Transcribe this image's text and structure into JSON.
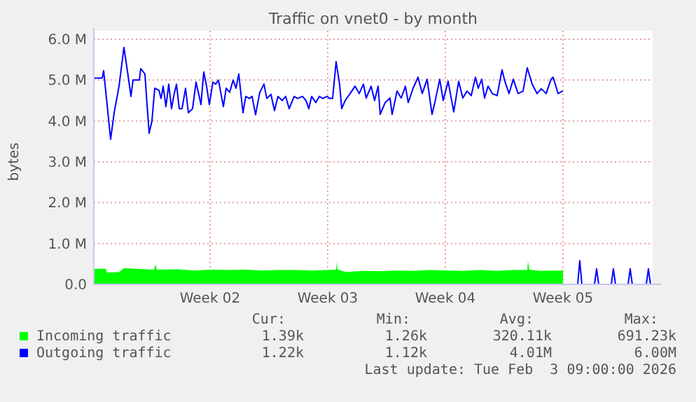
{
  "chart_data": {
    "type": "area",
    "title": "Traffic on vnet0 - by month",
    "ylabel": "bytes",
    "xlim": [
      "2026-01-01T12:00",
      "2026-02-03T18:00"
    ],
    "xticks": [
      {
        "value": "2026-01-08T10:00",
        "label": "Week 02"
      },
      {
        "value": "2026-01-15T10:00",
        "label": "Week 03"
      },
      {
        "value": "2026-01-22T10:00",
        "label": "Week 04"
      },
      {
        "value": "2026-01-29T10:00",
        "label": "Week 05"
      }
    ],
    "ylim": [
      0,
      6
    ],
    "yticks": [
      {
        "value": 0,
        "label": "0.0"
      },
      {
        "value": 1,
        "label": "1.0 M"
      },
      {
        "value": 2,
        "label": "2.0 M"
      },
      {
        "value": 3,
        "label": "3.0 M"
      },
      {
        "value": 4,
        "label": "4.0 M"
      },
      {
        "value": 5,
        "label": "5.0 M"
      },
      {
        "value": 6,
        "label": "6.0 M"
      }
    ],
    "grid": true,
    "legend": "bottom",
    "series": [
      {
        "name": "Incoming traffic",
        "type": "area",
        "color": "#00ff00",
        "x": [
          "2026-01-01T12:00",
          "2026-01-02T05:00",
          "2026-01-02T07:00",
          "2026-01-03T00:00",
          "2026-01-03T07:00",
          "2026-01-04T00:00",
          "2026-01-05T02:00",
          "2026-01-05T04:00",
          "2026-01-05T06:00",
          "2026-01-06T12:00",
          "2026-01-07T12:00",
          "2026-01-08T12:00",
          "2026-01-09T12:00",
          "2026-01-10T12:00",
          "2026-01-11T12:00",
          "2026-01-12T12:00",
          "2026-01-13T12:00",
          "2026-01-14T12:00",
          "2026-01-15T12:00",
          "2026-01-15T22:00",
          "2026-01-15T23:00",
          "2026-01-16T00:00",
          "2026-01-16T12:00",
          "2026-01-17T12:00",
          "2026-01-18T12:00",
          "2026-01-19T12:00",
          "2026-01-20T12:00",
          "2026-01-21T12:00",
          "2026-01-22T12:00",
          "2026-01-23T12:00",
          "2026-01-24T12:00",
          "2026-01-25T12:00",
          "2026-01-26T12:00",
          "2026-01-27T07:00",
          "2026-01-27T08:00",
          "2026-01-27T10:00",
          "2026-01-28T00:00",
          "2026-01-29T10:00"
        ],
        "values": [
          0.38,
          0.38,
          0.29,
          0.3,
          0.4,
          0.38,
          0.36,
          0.49,
          0.36,
          0.37,
          0.34,
          0.36,
          0.35,
          0.36,
          0.34,
          0.35,
          0.35,
          0.34,
          0.35,
          0.36,
          0.55,
          0.37,
          0.3,
          0.33,
          0.32,
          0.34,
          0.33,
          0.35,
          0.34,
          0.33,
          0.35,
          0.33,
          0.35,
          0.35,
          0.56,
          0.36,
          0.33,
          0.34
        ]
      },
      {
        "name": "Outgoing traffic",
        "type": "line",
        "color": "#0000ff",
        "x": [
          "2026-01-01T12:00",
          "2026-01-02T00:00",
          "2026-01-02T02:00",
          "2026-01-02T12:00",
          "2026-01-02T17:00",
          "2026-01-03T00:00",
          "2026-01-03T07:00",
          "2026-01-03T13:00",
          "2026-01-03T17:00",
          "2026-01-03T20:00",
          "2026-01-04T05:00",
          "2026-01-04T07:00",
          "2026-01-04T13:00",
          "2026-01-04T16:00",
          "2026-01-04T19:00",
          "2026-01-04T23:00",
          "2026-01-05T03:00",
          "2026-01-05T09:00",
          "2026-01-05T12:00",
          "2026-01-05T15:00",
          "2026-01-05T19:00",
          "2026-01-05T23:00",
          "2026-01-06T03:00",
          "2026-01-06T06:00",
          "2026-01-06T10:00",
          "2026-01-06T14:00",
          "2026-01-06T18:00",
          "2026-01-06T23:00",
          "2026-01-07T03:00",
          "2026-01-07T09:00",
          "2026-01-07T14:00",
          "2026-01-07T21:00",
          "2026-01-08T01:00",
          "2026-01-08T05:00",
          "2026-01-08T09:00",
          "2026-01-08T14:00",
          "2026-01-08T18:00",
          "2026-01-08T22:00",
          "2026-01-09T05:00",
          "2026-01-09T09:00",
          "2026-01-09T14:00",
          "2026-01-09T19:00",
          "2026-01-09T23:00",
          "2026-01-10T03:00",
          "2026-01-10T09:00",
          "2026-01-10T13:00",
          "2026-01-10T18:00",
          "2026-01-10T22:00",
          "2026-01-11T03:00",
          "2026-01-11T09:00",
          "2026-01-11T15:00",
          "2026-01-11T19:00",
          "2026-01-12T01:00",
          "2026-01-12T06:00",
          "2026-01-12T11:00",
          "2026-01-12T17:00",
          "2026-01-12T22:00",
          "2026-01-13T03:00",
          "2026-01-13T10:00",
          "2026-01-13T15:00",
          "2026-01-13T22:00",
          "2026-01-14T03:00",
          "2026-01-14T07:00",
          "2026-01-14T11:00",
          "2026-01-14T17:00",
          "2026-01-14T22:00",
          "2026-01-15T03:00",
          "2026-01-15T09:00",
          "2026-01-15T13:00",
          "2026-01-15T17:00",
          "2026-01-15T22:00",
          "2026-01-16T03:00",
          "2026-01-16T06:00",
          "2026-01-16T11:00",
          "2026-01-16T18:00",
          "2026-01-17T01:00",
          "2026-01-17T07:00",
          "2026-01-17T13:00",
          "2026-01-17T17:00",
          "2026-01-18T00:00",
          "2026-01-18T05:00",
          "2026-01-18T10:00",
          "2026-01-18T13:00",
          "2026-01-18T20:00",
          "2026-01-19T03:00",
          "2026-01-19T06:00",
          "2026-01-19T13:00",
          "2026-01-19T19:00",
          "2026-01-20T01:00",
          "2026-01-20T05:00",
          "2026-01-20T12:00",
          "2026-01-20T19:00",
          "2026-01-21T01:00",
          "2026-01-21T08:00",
          "2026-01-21T15:00",
          "2026-01-21T19:00",
          "2026-01-22T02:00",
          "2026-01-22T07:00",
          "2026-01-22T14:00",
          "2026-01-22T22:00",
          "2026-01-23T05:00",
          "2026-01-23T11:00",
          "2026-01-23T17:00",
          "2026-01-23T23:00",
          "2026-01-24T05:00",
          "2026-01-24T09:00",
          "2026-01-24T14:00",
          "2026-01-24T18:00",
          "2026-01-24T23:00",
          "2026-01-25T05:00",
          "2026-01-25T12:00",
          "2026-01-25T19:00",
          "2026-01-25T23:00",
          "2026-01-26T05:00",
          "2026-01-26T11:00",
          "2026-01-26T18:00",
          "2026-01-27T01:00",
          "2026-01-27T07:00",
          "2026-01-27T14:00",
          "2026-01-27T21:00",
          "2026-01-28T03:00",
          "2026-01-28T10:00",
          "2026-01-28T17:00",
          "2026-01-28T20:00",
          "2026-01-29T03:00",
          "2026-01-29T09:00",
          "2026-01-29T17:00",
          "2026-01-30T00:00",
          "2026-01-30T07:00",
          "2026-01-30T10:00",
          "2026-01-30T13:00",
          "2026-01-31T07:00",
          "2026-01-31T10:00",
          "2026-01-31T13:00",
          "2026-02-01T07:00",
          "2026-02-01T10:00",
          "2026-02-01T13:00",
          "2026-02-02T07:00",
          "2026-02-02T10:00",
          "2026-02-02T13:00",
          "2026-02-03T09:00",
          "2026-02-03T12:00",
          "2026-02-03T15:00"
        ],
        "values": [
          5.05,
          5.05,
          5.23,
          3.55,
          4.2,
          4.85,
          5.8,
          5.1,
          4.6,
          5.0,
          5.0,
          5.28,
          5.15,
          4.4,
          3.7,
          4.0,
          4.8,
          4.75,
          4.55,
          4.85,
          4.35,
          4.9,
          4.3,
          4.6,
          4.9,
          4.3,
          4.3,
          4.8,
          4.2,
          4.3,
          4.95,
          4.4,
          5.2,
          4.85,
          4.4,
          4.95,
          4.9,
          5.0,
          4.35,
          4.8,
          4.7,
          5.0,
          4.8,
          5.15,
          4.2,
          4.6,
          4.55,
          4.6,
          4.15,
          4.7,
          4.9,
          4.55,
          4.65,
          4.25,
          4.6,
          4.5,
          4.6,
          4.3,
          4.6,
          4.55,
          4.6,
          4.5,
          4.3,
          4.6,
          4.45,
          4.6,
          4.55,
          4.6,
          4.55,
          4.55,
          5.45,
          4.9,
          4.3,
          4.5,
          4.67,
          4.85,
          4.67,
          4.9,
          4.56,
          4.85,
          4.5,
          4.85,
          4.16,
          4.45,
          4.56,
          4.16,
          4.73,
          4.56,
          4.85,
          4.45,
          4.8,
          5.07,
          4.67,
          5.02,
          4.16,
          4.45,
          5.02,
          4.5,
          4.97,
          4.22,
          4.97,
          4.56,
          4.73,
          4.62,
          5.07,
          4.8,
          5.02,
          4.56,
          4.85,
          4.67,
          4.62,
          5.25,
          4.97,
          4.67,
          5.02,
          4.67,
          4.73,
          5.3,
          4.9,
          4.67,
          4.79,
          4.67,
          5.02,
          5.07,
          4.67,
          4.73,
          null,
          0,
          0,
          0.58,
          0,
          0,
          0.38,
          0,
          0,
          0.38,
          0,
          0,
          0.38,
          0,
          0,
          0.38,
          0
        ]
      }
    ],
    "annotations": [
      "Cur:",
      "Min:",
      "Avg:",
      "Max:",
      "1.39k",
      "1.26k",
      "320.11k",
      "691.23k",
      "1.22k",
      "1.12k",
      "4.01M",
      "6.00M",
      "Last update: Tue Feb  3 09:00:00 2026"
    ]
  }
}
